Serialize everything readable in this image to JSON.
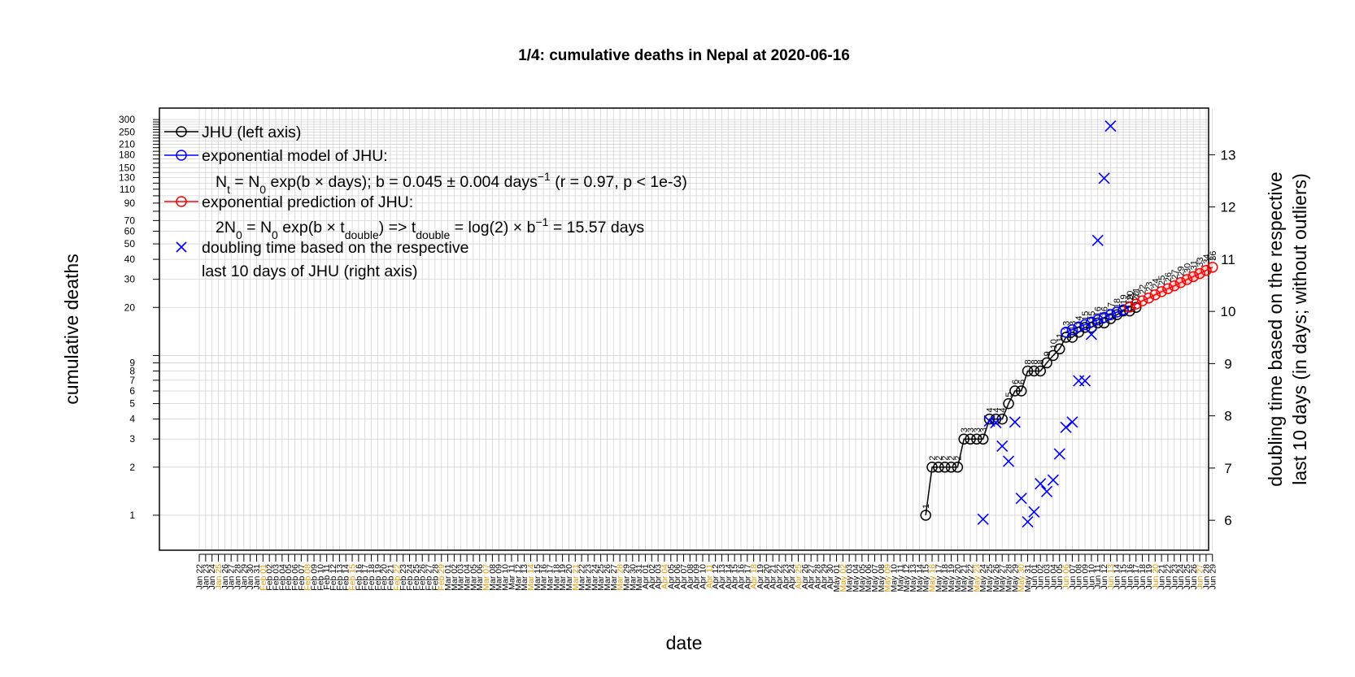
{
  "chart_data": {
    "type": "line",
    "title": "1/4: cumulative deaths in Nepal at 2020-06-16",
    "xlabel": "date",
    "ylabel_left": "cumulative deaths",
    "ylabel_right_line1": "doubling time based on the respective",
    "ylabel_right_line2": "last 10 days (in days; without outliers)",
    "y_left_scale": "log",
    "y_left_range": [
      0.8,
      330
    ],
    "y_left_ticks": [
      1,
      2,
      3,
      4,
      5,
      6,
      7,
      8,
      9,
      10,
      20,
      30,
      40,
      50,
      60,
      70,
      80,
      90,
      100,
      110,
      120,
      130,
      140,
      150,
      160,
      170,
      180,
      190,
      200,
      210,
      220,
      230,
      240,
      250,
      260,
      270,
      280,
      290,
      300
    ],
    "y_left_labeled_ticks": [
      "1",
      "2",
      "3",
      "4",
      "5",
      "6",
      "7",
      "8",
      "9",
      "20",
      "30",
      "40",
      "50",
      "60",
      "70",
      "90",
      "110",
      "130",
      "150",
      "180",
      "210",
      "250",
      "300"
    ],
    "y_right_range": [
      5.8,
      13.8
    ],
    "y_right_ticks": [
      "6",
      "7",
      "8",
      "9",
      "10",
      "11",
      "12",
      "13"
    ],
    "x_start": "2020-01-22",
    "x_end": "2020-06-29",
    "x_tick_labels": [
      "Jan 22",
      "Jan 23",
      "Jan 24",
      "Jan 25",
      "Jan 26",
      "Jan 27",
      "Jan 28",
      "Jan 29",
      "Jan 30",
      "Jan 31",
      "Feb 01",
      "Feb 02",
      "Feb 03",
      "Feb 04",
      "Feb 05",
      "Feb 06",
      "Feb 07",
      "Feb 08",
      "Feb 09",
      "Feb 10",
      "Feb 11",
      "Feb 12",
      "Feb 13",
      "Feb 14",
      "Feb 15",
      "Feb 16",
      "Feb 17",
      "Feb 18",
      "Feb 19",
      "Feb 20",
      "Feb 21",
      "Feb 22",
      "Feb 23",
      "Feb 24",
      "Feb 25",
      "Feb 26",
      "Feb 27",
      "Feb 28",
      "Feb 29",
      "Mar 01",
      "Mar 02",
      "Mar 03",
      "Mar 04",
      "Mar 05",
      "Mar 06",
      "Mar 07",
      "Mar 08",
      "Mar 09",
      "Mar 10",
      "Mar 11",
      "Mar 12",
      "Mar 13",
      "Mar 14",
      "Mar 15",
      "Mar 16",
      "Mar 17",
      "Mar 18",
      "Mar 19",
      "Mar 20",
      "Mar 21",
      "Mar 22",
      "Mar 23",
      "Mar 24",
      "Mar 25",
      "Mar 26",
      "Mar 27",
      "Mar 28",
      "Mar 29",
      "Mar 30",
      "Mar 31",
      "Apr 01",
      "Apr 02",
      "Apr 03",
      "Apr 04",
      "Apr 05",
      "Apr 06",
      "Apr 07",
      "Apr 08",
      "Apr 09",
      "Apr 10",
      "Apr 11",
      "Apr 12",
      "Apr 13",
      "Apr 14",
      "Apr 15",
      "Apr 16",
      "Apr 17",
      "Apr 18",
      "Apr 19",
      "Apr 20",
      "Apr 21",
      "Apr 22",
      "Apr 23",
      "Apr 24",
      "Apr 25",
      "Apr 26",
      "Apr 27",
      "Apr 28",
      "Apr 29",
      "Apr 30",
      "May 01",
      "May 02",
      "May 03",
      "May 04",
      "May 05",
      "May 06",
      "May 07",
      "May 08",
      "May 09",
      "May 10",
      "May 11",
      "May 12",
      "May 13",
      "May 14",
      "May 15",
      "May 16",
      "May 17",
      "May 18",
      "May 19",
      "May 20",
      "May 21",
      "May 22",
      "May 23",
      "May 24",
      "May 25",
      "May 26",
      "May 27",
      "May 28",
      "May 29",
      "May 30",
      "May 31",
      "Jun 01",
      "Jun 02",
      "Jun 03",
      "Jun 04",
      "Jun 05",
      "Jun 06",
      "Jun 07",
      "Jun 08",
      "Jun 09",
      "Jun 10",
      "Jun 11",
      "Jun 12",
      "Jun 13",
      "Jun 14",
      "Jun 15",
      "Jun 16",
      "Jun 17",
      "Jun 18",
      "Jun 19",
      "Jun 20",
      "Jun 21",
      "Jun 22",
      "Jun 23",
      "Jun 24",
      "Jun 25",
      "Jun 26",
      "Jun 27",
      "Jun 28",
      "Jun 29"
    ],
    "x_tick_highlight_color": "#e69500",
    "x_tick_normal_color": "#000000",
    "grid": true,
    "legend": {
      "placement": "top-left",
      "entries": [
        {
          "name": "JHU (left axis)",
          "color": "#000000",
          "marker": "circle-line"
        },
        {
          "name": "exponential model of JHU:",
          "color": "#0000ff",
          "marker": "circle-line",
          "formula": {
            "n": "N",
            "t_sub": "t",
            "eq1": " = N",
            "zero_sub": "0",
            "rest": " exp(b × days); b = 0.045 ± 0.004 days",
            "sup": "−1",
            "tail": " (r = 0.97, p < 1e-3)"
          }
        },
        {
          "name": "exponential prediction of JHU:",
          "color": "#ff0000",
          "marker": "circle-line",
          "formula": {
            "lead": "2N",
            "zero_sub1": "0",
            "mid": " = N",
            "zero_sub2": "0",
            "rest": " exp(b × t",
            "dbl_sub": "double",
            "mid2": ") => t",
            "dbl_sub2": "double",
            "rest2": " = log(2) × b",
            "sup": "−1",
            "tail": " = 15.57 days"
          }
        },
        {
          "name": "doubling time based on the respective",
          "name2": "last 10 days of JHU (right axis)",
          "color": "#0000ff",
          "marker": "x"
        }
      ]
    },
    "series": [
      {
        "name": "JHU (left axis)",
        "color": "#000000",
        "start": "2020-05-15",
        "values": [
          1,
          2,
          2,
          2,
          2,
          2,
          3,
          3,
          3,
          3,
          4,
          4,
          4,
          5,
          6,
          6,
          8,
          8,
          8,
          9,
          10,
          11,
          13,
          13,
          14,
          15,
          15,
          16,
          16,
          17,
          18,
          19,
          19,
          20
        ],
        "labels": [
          "1",
          "2",
          "2",
          "2",
          "2",
          "2",
          "3",
          "3",
          "3",
          "3",
          "4",
          "4",
          "4",
          "5",
          "6",
          "6",
          "8",
          "8",
          "8",
          "9",
          "10",
          "11",
          "13",
          "13",
          "14",
          "15",
          "15",
          "16",
          "16",
          "17",
          "18",
          "19",
          "19",
          "20"
        ]
      },
      {
        "name": "exponential model of JHU",
        "color": "#0000ff",
        "start": "2020-06-06",
        "values": [
          14,
          14.5,
          15.1,
          15.6,
          16.2,
          16.7,
          17.3,
          18.0,
          18.7,
          19.3,
          20.1
        ]
      },
      {
        "name": "exponential prediction of JHU",
        "color": "#ff0000",
        "start": "2020-06-16",
        "values": [
          20.1,
          21.0,
          22.0,
          22.9,
          24.0,
          25.1,
          26.2,
          27.3,
          28.6,
          29.9,
          31.2,
          32.6,
          34.1,
          35.7
        ],
        "labels": [
          "20",
          "21",
          "22",
          "23",
          "24",
          "25",
          "26",
          "27",
          "29",
          "30",
          "31",
          "33",
          "34",
          "36"
        ]
      },
      {
        "name": "doubling time based on the respective last 10 days of JHU (right axis)",
        "color": "#0000ff",
        "marker": "x",
        "points": [
          {
            "date": "2020-05-24",
            "value": 6.02
          },
          {
            "date": "2020-05-25",
            "value": 7.9
          },
          {
            "date": "2020-05-26",
            "value": 7.87
          },
          {
            "date": "2020-05-27",
            "value": 7.42
          },
          {
            "date": "2020-05-28",
            "value": 7.13
          },
          {
            "date": "2020-05-29",
            "value": 7.88
          },
          {
            "date": "2020-05-30",
            "value": 6.42
          },
          {
            "date": "2020-05-31",
            "value": 5.97
          },
          {
            "date": "2020-06-01",
            "value": 6.16
          },
          {
            "date": "2020-06-02",
            "value": 6.7
          },
          {
            "date": "2020-06-03",
            "value": 6.55
          },
          {
            "date": "2020-06-04",
            "value": 6.77
          },
          {
            "date": "2020-06-05",
            "value": 7.27
          },
          {
            "date": "2020-06-06",
            "value": 7.78
          },
          {
            "date": "2020-06-07",
            "value": 7.88
          },
          {
            "date": "2020-06-08",
            "value": 8.67
          },
          {
            "date": "2020-06-09",
            "value": 8.67
          },
          {
            "date": "2020-06-10",
            "value": 9.56
          },
          {
            "date": "2020-06-11",
            "value": 11.36
          },
          {
            "date": "2020-06-12",
            "value": 12.55
          },
          {
            "date": "2020-06-13",
            "value": 13.55
          }
        ]
      }
    ]
  }
}
